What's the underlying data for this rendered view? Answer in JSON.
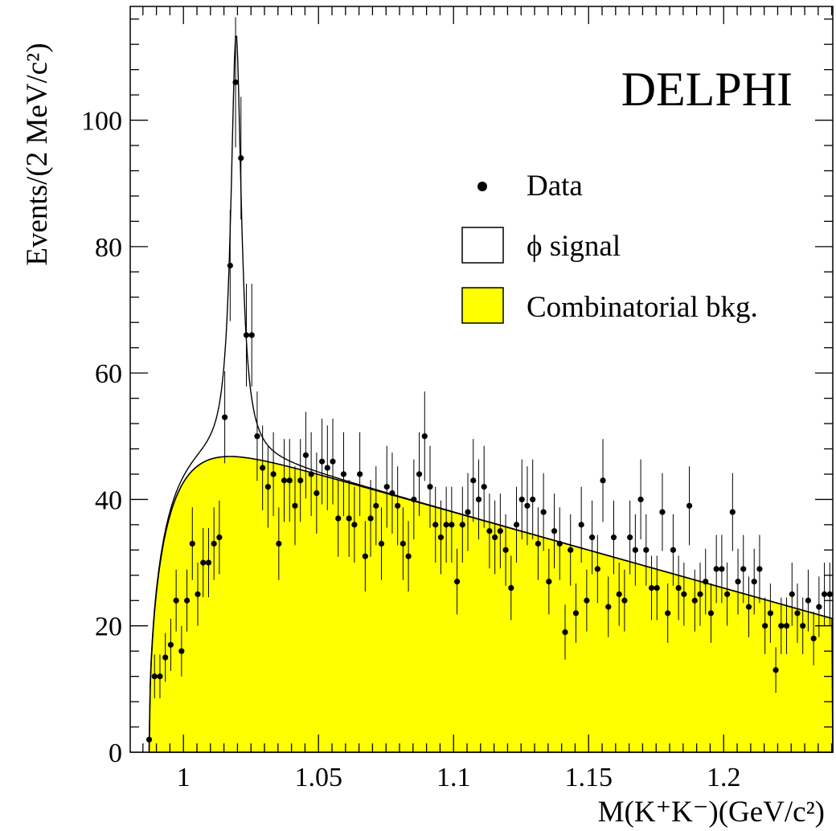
{
  "chart_data": {
    "type": "scatter",
    "title": "",
    "experiment_label": "DELPHI",
    "xlabel": "M(K⁺K⁻)(GeV/c²)",
    "ylabel": "Events/(2 MeV/c²)",
    "xlim": [
      0.9803,
      1.2404
    ],
    "ylim": [
      0,
      118
    ],
    "xticks": [
      1,
      1.05,
      1.1,
      1.15,
      1.2
    ],
    "xtick_labels": [
      "1",
      "1.05",
      "1.1",
      "1.15",
      "1.2"
    ],
    "yticks": [
      0,
      20,
      40,
      60,
      80,
      100
    ],
    "ytick_labels": [
      "0",
      "20",
      "40",
      "60",
      "80",
      "100"
    ],
    "legend_position": "upper-right",
    "legend": [
      {
        "label": "Data",
        "marker": "dot"
      },
      {
        "label": "ϕ signal",
        "marker": "open-box"
      },
      {
        "label": "Combinatorial bkg.",
        "marker": "filled-box"
      }
    ],
    "colors": {
      "background_fill": "#ffff00",
      "line": "#000000",
      "data": "#000000"
    },
    "data_points": {
      "x": [
        0.9873,
        0.9893,
        0.9913,
        0.9933,
        0.9953,
        0.9973,
        0.9993,
        1.0013,
        1.0033,
        1.0053,
        1.0073,
        1.0093,
        1.0113,
        1.0133,
        1.0153,
        1.0173,
        1.0193,
        1.0213,
        1.0233,
        1.0253,
        1.0273,
        1.0293,
        1.0313,
        1.0333,
        1.0353,
        1.0373,
        1.0393,
        1.0413,
        1.0433,
        1.0453,
        1.0473,
        1.0493,
        1.0513,
        1.0533,
        1.0553,
        1.0573,
        1.0593,
        1.0613,
        1.0633,
        1.0653,
        1.0673,
        1.0693,
        1.0713,
        1.0733,
        1.0753,
        1.0773,
        1.0793,
        1.0813,
        1.0833,
        1.0853,
        1.0873,
        1.0893,
        1.0913,
        1.0933,
        1.0953,
        1.0973,
        1.0993,
        1.1013,
        1.1033,
        1.1053,
        1.1073,
        1.1093,
        1.1113,
        1.1133,
        1.1153,
        1.1173,
        1.1193,
        1.1213,
        1.1233,
        1.1253,
        1.1273,
        1.1293,
        1.1313,
        1.1333,
        1.1353,
        1.1373,
        1.1393,
        1.1413,
        1.1433,
        1.1453,
        1.1473,
        1.1493,
        1.1513,
        1.1533,
        1.1553,
        1.1573,
        1.1593,
        1.1613,
        1.1633,
        1.1653,
        1.1673,
        1.1693,
        1.1713,
        1.1733,
        1.1753,
        1.1773,
        1.1793,
        1.1813,
        1.1833,
        1.1853,
        1.1873,
        1.1893,
        1.1913,
        1.1933,
        1.1953,
        1.1973,
        1.1993,
        1.2013,
        1.2033,
        1.2053,
        1.2073,
        1.2093,
        1.2113,
        1.2133,
        1.2153,
        1.2173,
        1.2193,
        1.2213,
        1.2233,
        1.2253,
        1.2273,
        1.2293,
        1.2313,
        1.2333,
        1.2353,
        1.2373,
        1.2393
      ],
      "y": [
        2,
        12,
        12,
        15,
        17,
        24,
        16,
        24,
        33,
        25,
        30,
        30,
        33,
        34,
        53,
        77,
        106,
        94,
        66,
        66,
        50,
        45,
        42,
        44,
        33,
        43,
        43,
        39,
        43,
        47,
        44,
        41,
        46,
        45,
        46,
        37,
        44,
        37,
        36,
        44,
        31,
        37,
        39,
        33,
        42,
        41,
        39,
        33,
        31,
        40,
        44,
        50,
        42,
        36,
        34,
        36,
        36,
        27,
        36,
        38,
        43,
        40,
        42,
        35,
        34,
        35,
        32,
        26,
        36,
        40,
        39,
        40,
        33,
        38,
        27,
        35,
        33,
        19,
        32,
        22,
        36,
        24,
        34,
        29,
        43,
        23,
        34,
        25,
        24,
        34,
        32,
        40,
        32,
        26,
        26,
        38,
        22,
        32,
        26,
        25,
        39,
        24,
        25,
        27,
        22,
        29,
        29,
        25,
        38,
        27,
        29,
        23,
        27,
        29,
        20,
        22,
        13,
        20,
        20,
        25,
        22,
        20,
        24,
        18,
        23,
        25,
        25
      ]
    }
  }
}
